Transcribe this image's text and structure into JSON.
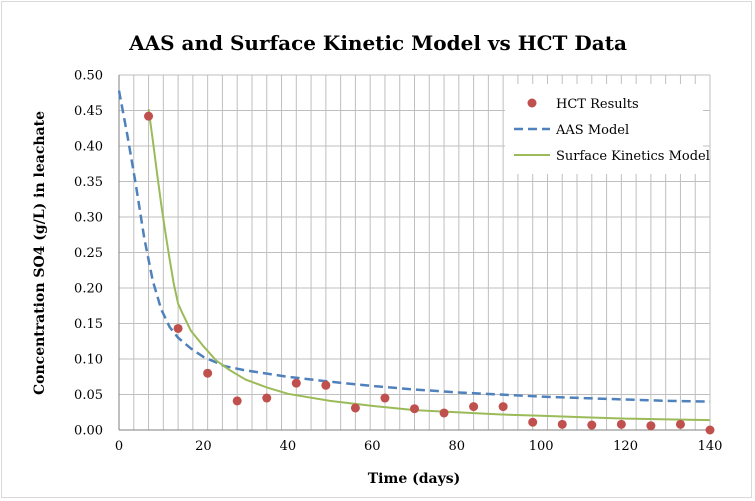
{
  "chart_data": {
    "type": "scatter",
    "title": "AAS and Surface Kinetic Model vs HCT Data",
    "xlabel": "Time (days)",
    "ylabel": "Concentration SO4 (g/L) in leachate",
    "xlim": [
      0,
      140
    ],
    "ylim": [
      0,
      0.5
    ],
    "x_ticks": [
      "0",
      "20",
      "40",
      "60",
      "80",
      "100",
      "120",
      "140"
    ],
    "y_ticks": [
      "0.00",
      "0.05",
      "0.10",
      "0.15",
      "0.20",
      "0.25",
      "0.30",
      "0.35",
      "0.40",
      "0.45",
      "0.50"
    ],
    "x_minor_gridline_step": 3.5,
    "grid": true,
    "legend_position": "top-right",
    "series": [
      {
        "name": "HCT Results",
        "kind": "markers",
        "color": "#c0504d",
        "x": [
          7,
          14,
          21,
          28,
          35,
          42,
          49,
          56,
          63,
          70,
          77,
          84,
          91,
          98,
          105,
          112,
          119,
          126,
          133,
          140
        ],
        "y": [
          0.442,
          0.143,
          0.08,
          0.041,
          0.045,
          0.066,
          0.063,
          0.031,
          0.045,
          0.03,
          0.024,
          0.033,
          0.033,
          0.011,
          0.008,
          0.007,
          0.008,
          0.006,
          0.008,
          0.0
        ]
      },
      {
        "name": "AAS Model",
        "kind": "dashed-line",
        "color": "#4f81bd",
        "x": [
          0,
          2,
          4,
          6,
          8,
          10,
          12,
          14,
          17,
          20,
          25,
          30,
          40,
          50,
          60,
          70,
          80,
          90,
          100,
          110,
          120,
          130,
          140
        ],
        "y": [
          0.478,
          0.415,
          0.345,
          0.27,
          0.21,
          0.17,
          0.145,
          0.13,
          0.115,
          0.103,
          0.09,
          0.084,
          0.075,
          0.068,
          0.062,
          0.057,
          0.053,
          0.05,
          0.047,
          0.045,
          0.043,
          0.041,
          0.04
        ]
      },
      {
        "name": "Surface Kinetics Model",
        "kind": "line",
        "color": "#9bbb59",
        "x": [
          7,
          8,
          9,
          10,
          11,
          12,
          13,
          14,
          15,
          17,
          20,
          23,
          26,
          30,
          35,
          40,
          50,
          60,
          70,
          80,
          90,
          100,
          110,
          120,
          130,
          140
        ],
        "y": [
          0.452,
          0.408,
          0.362,
          0.318,
          0.278,
          0.24,
          0.205,
          0.178,
          0.165,
          0.14,
          0.118,
          0.098,
          0.085,
          0.071,
          0.06,
          0.051,
          0.041,
          0.034,
          0.028,
          0.025,
          0.022,
          0.02,
          0.018,
          0.016,
          0.015,
          0.014
        ]
      }
    ]
  }
}
